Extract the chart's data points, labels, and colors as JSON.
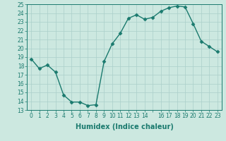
{
  "x": [
    0,
    1,
    2,
    3,
    4,
    5,
    6,
    7,
    8,
    9,
    10,
    11,
    12,
    13,
    14,
    15,
    16,
    17,
    18,
    19,
    20,
    21,
    22,
    23
  ],
  "y": [
    18.8,
    17.7,
    18.1,
    17.3,
    14.7,
    13.9,
    13.9,
    13.5,
    13.6,
    18.5,
    20.5,
    21.7,
    23.4,
    23.8,
    23.3,
    23.5,
    24.2,
    24.6,
    24.8,
    24.7,
    22.8,
    20.8,
    20.2,
    19.6
  ],
  "line_color": "#1a7a6e",
  "marker_color": "#1a7a6e",
  "bg_color": "#cce8e0",
  "plot_bg_color": "#cce8e0",
  "grid_color": "#aacfca",
  "xlabel": "Humidex (Indice chaleur)",
  "ylim": [
    13,
    25
  ],
  "xlim_min": -0.5,
  "xlim_max": 23.5,
  "yticks": [
    13,
    14,
    15,
    16,
    17,
    18,
    19,
    20,
    21,
    22,
    23,
    24,
    25
  ],
  "xticks": [
    0,
    1,
    2,
    3,
    4,
    5,
    6,
    7,
    8,
    9,
    10,
    11,
    12,
    13,
    14,
    15,
    16,
    17,
    18,
    19,
    20,
    21,
    22,
    23
  ],
  "xtick_labels": [
    "0",
    "1",
    "2",
    "3",
    "4",
    "5",
    "6",
    "7",
    "8",
    "9",
    "10",
    "11",
    "12",
    "13",
    "14",
    "",
    "16",
    "17",
    "18",
    "19",
    "20",
    "21",
    "22",
    "23"
  ],
  "axis_color": "#1a7a6e",
  "font_color": "#1a7a6e",
  "linewidth": 1.0,
  "markersize": 2.5,
  "tick_fontsize": 5.5,
  "xlabel_fontsize": 7.0
}
